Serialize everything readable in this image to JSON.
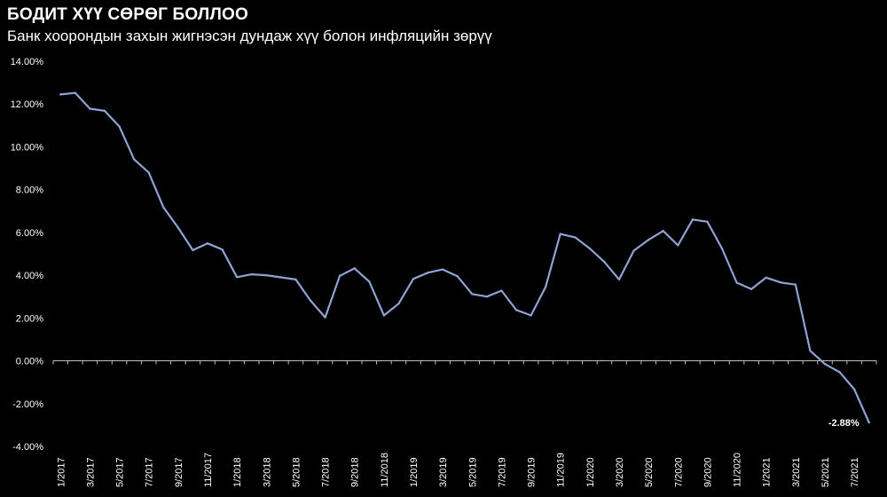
{
  "header": {
    "title": "БОДИТ ХҮҮ СӨРӨГ БОЛЛОО",
    "subtitle": "Банк хоорондын захын жигнэсэн дундаж хүү болон инфляцийн зөрүү"
  },
  "colors": {
    "background": "#000000",
    "text": "#ffffff",
    "line": "#8FA2D4",
    "axis": "#bfbfbf"
  },
  "chart_data": {
    "type": "line",
    "title": "БОДИТ ХҮҮ СӨРӨГ БОЛЛОО",
    "subtitle": "Банк хоорондын захын жигнэсэн дундаж хүү болон инфляцийн зөрүү",
    "xlabel": "",
    "ylabel": "",
    "ylim": [
      -4,
      14
    ],
    "yticks": [
      -4,
      -2,
      0,
      2,
      4,
      6,
      8,
      10,
      12,
      14
    ],
    "ytick_labels": [
      "-4.00%",
      "-2.00%",
      "0.00%",
      "2.00%",
      "4.00%",
      "6.00%",
      "8.00%",
      "10.00%",
      "12.00%",
      "14.00%"
    ],
    "grid": false,
    "legend": "none",
    "x": [
      "1/2017",
      "2/2017",
      "3/2017",
      "4/2017",
      "5/2017",
      "6/2017",
      "7/2017",
      "8/2017",
      "9/2017",
      "10/2017",
      "11/2017",
      "12/2017",
      "1/2018",
      "2/2018",
      "3/2018",
      "4/2018",
      "5/2018",
      "6/2018",
      "7/2018",
      "8/2018",
      "9/2018",
      "10/2018",
      "11/2018",
      "12/2018",
      "1/2019",
      "2/2019",
      "3/2019",
      "4/2019",
      "5/2019",
      "6/2019",
      "7/2019",
      "8/2019",
      "9/2019",
      "10/2019",
      "11/2019",
      "12/2019",
      "1/2020",
      "2/2020",
      "3/2020",
      "4/2020",
      "5/2020",
      "6/2020",
      "7/2020",
      "8/2020",
      "9/2020",
      "10/2020",
      "11/2020",
      "12/2020",
      "1/2021",
      "2/2021",
      "3/2021",
      "4/2021",
      "5/2021",
      "6/2021",
      "7/2021",
      "8/2021"
    ],
    "xtick_labels": [
      "1/2017",
      "3/2017",
      "5/2017",
      "7/2017",
      "9/2017",
      "11/2017",
      "1/2018",
      "3/2018",
      "5/2018",
      "7/2018",
      "9/2018",
      "11/2018",
      "1/2019",
      "3/2019",
      "5/2019",
      "7/2019",
      "9/2019",
      "11/2019",
      "1/2020",
      "3/2020",
      "5/2020",
      "7/2020",
      "9/2020",
      "11/2020",
      "1/2021",
      "3/2021",
      "5/2021",
      "7/2021"
    ],
    "series": [
      {
        "values": [
          12.45,
          12.52,
          11.78,
          11.68,
          10.95,
          9.42,
          8.8,
          7.17,
          6.22,
          5.17,
          5.49,
          5.2,
          3.91,
          4.04,
          4.0,
          3.9,
          3.8,
          2.82,
          2.03,
          3.97,
          4.32,
          3.7,
          2.12,
          2.67,
          3.83,
          4.12,
          4.27,
          3.95,
          3.12,
          3.0,
          3.28,
          2.38,
          2.12,
          3.45,
          5.93,
          5.77,
          5.25,
          4.62,
          3.8,
          5.15,
          5.65,
          6.07,
          5.4,
          6.6,
          6.5,
          5.25,
          3.65,
          3.35,
          3.89,
          3.66,
          3.56,
          0.47,
          -0.15,
          -0.53,
          -1.33,
          -2.88
        ]
      }
    ],
    "annotation": {
      "text": "-2.88%",
      "x": "8/2021",
      "y": -2.88
    }
  }
}
